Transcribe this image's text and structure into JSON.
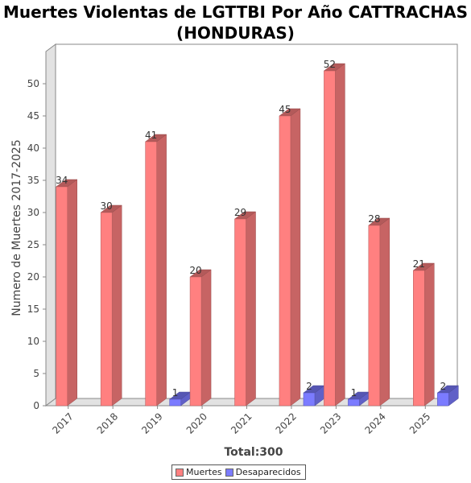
{
  "chart_data": {
    "type": "bar",
    "title_lines": [
      "Muertes Violentas de LGTTBI  Por Año CATTRACHAS",
      "(HONDURAS)"
    ],
    "ylabel": "Numero de Muertes 2017-2025",
    "xlabel": "Total:300",
    "categories": [
      "2017",
      "2018",
      "2019",
      "2020",
      "2021",
      "2022",
      "2023",
      "2024",
      "2025"
    ],
    "series": [
      {
        "name": "Muertes",
        "color": "#ff8080",
        "values": [
          34,
          30,
          41,
          20,
          29,
          45,
          52,
          28,
          21
        ]
      },
      {
        "name": "Desaparecidos",
        "color": "#7b7bff",
        "values": [
          0,
          0,
          1,
          0,
          0,
          2,
          1,
          0,
          2
        ]
      }
    ],
    "ylim": [
      0,
      55
    ],
    "yticks": [
      0,
      5,
      10,
      15,
      20,
      25,
      30,
      35,
      40,
      45,
      50
    ],
    "grid": false,
    "three_d": true,
    "legend_position": "bottom"
  }
}
